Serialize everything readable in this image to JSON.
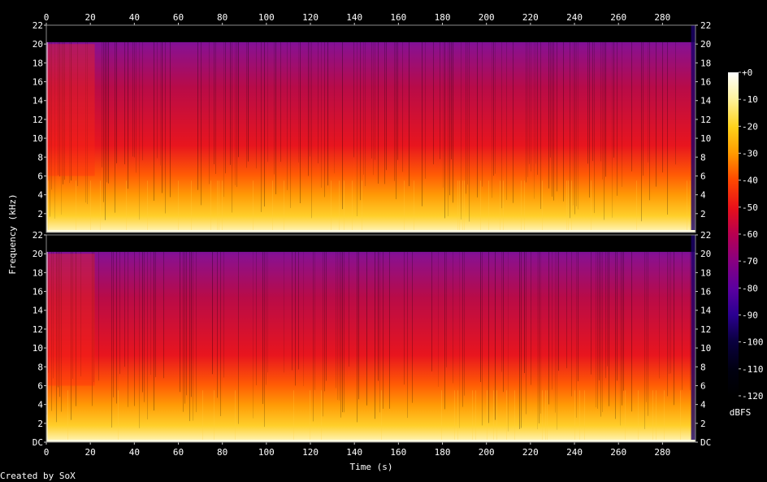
{
  "chart_data": {
    "type": "heatmap",
    "title": "",
    "xlabel": "Time (s)",
    "ylabel": "Frequency (kHz)",
    "x_ticks": [
      0,
      20,
      40,
      60,
      80,
      100,
      120,
      140,
      160,
      180,
      200,
      220,
      240,
      260,
      280
    ],
    "xlim": [
      0,
      295
    ],
    "channels": [
      {
        "ylim": [
          0,
          22
        ],
        "y_ticks": [
          "2",
          "4",
          "6",
          "8",
          "10",
          "12",
          "14",
          "16",
          "18",
          "20",
          "22"
        ]
      },
      {
        "ylim": [
          0,
          22
        ],
        "y_ticks": [
          "DC",
          "2",
          "4",
          "6",
          "8",
          "10",
          "12",
          "14",
          "16",
          "18",
          "20",
          "22"
        ]
      }
    ],
    "colorbar": {
      "label": "dBFS",
      "range": [
        -120,
        0
      ],
      "ticks": [
        "+0",
        "-10",
        "-20",
        "-30",
        "-40",
        "-50",
        "-60",
        "-70",
        "-80",
        "-90",
        "-100",
        "-110",
        "-120"
      ],
      "colors": [
        "#ffffff",
        "#fff3a0",
        "#ffd21a",
        "#ff9a00",
        "#ff4a00",
        "#e8101a",
        "#b80050",
        "#8a007f",
        "#5a00a0",
        "#2a0090",
        "#0a0040",
        "#000010",
        "#000000"
      ]
    },
    "legend": "right"
  },
  "footer": {
    "credit": "Created by SoX"
  }
}
